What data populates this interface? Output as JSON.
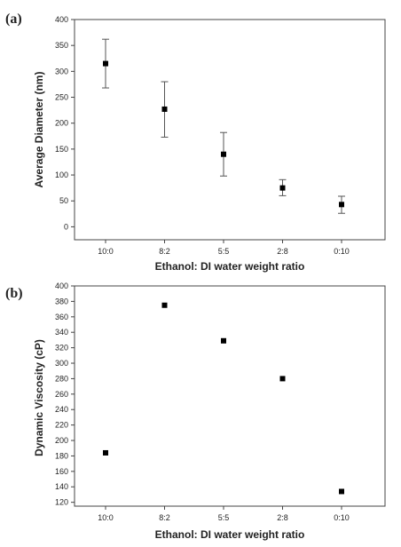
{
  "colors": {
    "marker": "#000000",
    "axis": "#444444",
    "errorbar": "#555555"
  },
  "chart_data": [
    {
      "type": "scatter",
      "panel_label": "(a)",
      "title": "",
      "xlabel": "Ethanol: DI water weight ratio",
      "ylabel": "Average Diameter (nm)",
      "categories": [
        "10:0",
        "8:2",
        "5:5",
        "2:8",
        "0:10"
      ],
      "values": [
        315,
        227,
        140,
        75,
        43
      ],
      "error_low": [
        268,
        173,
        98,
        60,
        26
      ],
      "error_high": [
        362,
        280,
        182,
        91,
        59
      ],
      "ylim": [
        -25,
        400
      ],
      "yticks": [
        0,
        50,
        100,
        150,
        200,
        250,
        300,
        350,
        400
      ],
      "grid": false,
      "marker": "square"
    },
    {
      "type": "scatter",
      "panel_label": "(b)",
      "title": "",
      "xlabel": "Ethanol: DI water weight ratio",
      "ylabel": "Dynamic Viscosity (cP)",
      "categories": [
        "10:0",
        "8:2",
        "5:5",
        "2:8",
        "0:10"
      ],
      "values": [
        184,
        375,
        329,
        280,
        134
      ],
      "ylim": [
        115,
        400
      ],
      "yticks": [
        120,
        140,
        160,
        180,
        200,
        220,
        240,
        260,
        280,
        300,
        320,
        340,
        360,
        380,
        400
      ],
      "grid": false,
      "marker": "square"
    }
  ]
}
